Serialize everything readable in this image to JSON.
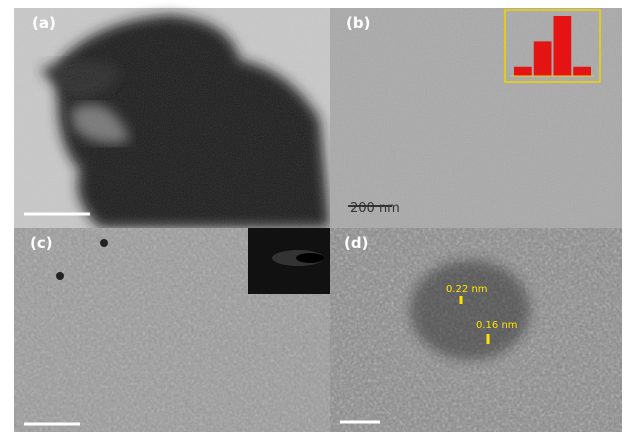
{
  "panels": {
    "a": {
      "label": "(a)"
    },
    "b": {
      "label": "(b)",
      "scale_bar": "200 nm"
    },
    "c": {
      "label": "(c)"
    },
    "d": {
      "label": "(d)",
      "fringe_1": "0.22 nm",
      "fringe_2": "0.16 nm"
    }
  },
  "inset_histogram": {
    "values": [
      12,
      45,
      78,
      12
    ],
    "color": "#e41414",
    "border": "#f2d400"
  }
}
